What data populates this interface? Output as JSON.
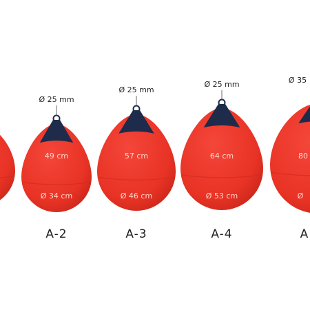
{
  "buoys": [
    {
      "rope": null,
      "height": null,
      "diameter": null,
      "model": null
    },
    {
      "rope": "Ø 25 mm",
      "height": "49 cm",
      "diameter": "Ø 34 cm",
      "model": "A-2"
    },
    {
      "rope": "Ø 25 mm",
      "height": "57 cm",
      "diameter": "Ø 46 cm",
      "model": "A-3"
    },
    {
      "rope": "Ø 25 mm",
      "height": "64 cm",
      "diameter": "Ø 53 cm",
      "model": "A-4"
    },
    {
      "rope": "Ø 35",
      "height": "80",
      "diameter": "Ø",
      "model": "A"
    }
  ]
}
